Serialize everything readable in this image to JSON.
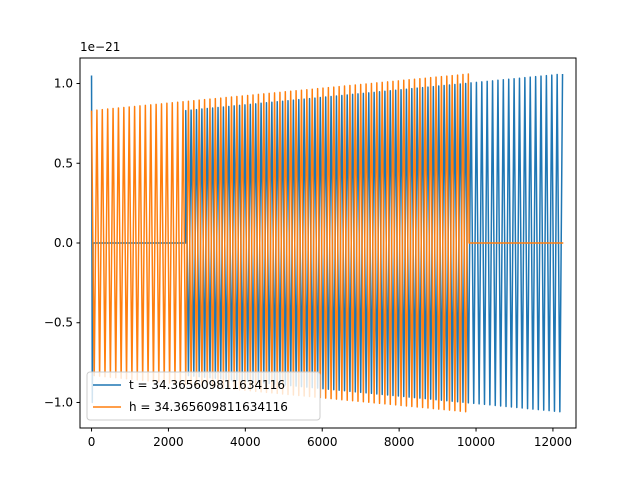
{
  "chart_data": {
    "type": "line",
    "title": "",
    "xlabel": "",
    "ylabel": "",
    "xlim": [
      -300,
      12600
    ],
    "ylim": [
      -1.16e-21,
      1.16e-21
    ],
    "y_offset_label": "1e−21",
    "x_ticks": [
      {
        "value": 0,
        "label": "0"
      },
      {
        "value": 2000,
        "label": "2000"
      },
      {
        "value": 4000,
        "label": "4000"
      },
      {
        "value": 6000,
        "label": "6000"
      },
      {
        "value": 8000,
        "label": "8000"
      },
      {
        "value": 10000,
        "label": "10000"
      },
      {
        "value": 12000,
        "label": "12000"
      }
    ],
    "y_ticks": [
      {
        "value": -1e-21,
        "label": "−1.0"
      },
      {
        "value": -5e-22,
        "label": "−0.5"
      },
      {
        "value": 0.0,
        "label": "0.0"
      },
      {
        "value": 5e-22,
        "label": "0.5"
      },
      {
        "value": 1e-21,
        "label": "1.0"
      }
    ],
    "grid": false,
    "legend_position": "lower-left",
    "series": [
      {
        "name": "t = 34.365609811634116",
        "color": "#1f77b4",
        "signal": {
          "kind": "oscillation",
          "segments": [
            {
              "x_start": 0,
              "x_end": 2450,
              "amplitude": 0,
              "flat_value": 0
            },
            {
              "x_start": 2450,
              "x_end": 12270,
              "amplitude_start": 8.3e-22,
              "amplitude_end": 1.06e-21,
              "period": 140
            }
          ],
          "spike": {
            "x": 0,
            "peak": 1.05e-21,
            "trough": -1e-21
          }
        }
      },
      {
        "name": "h = 34.365609811634116",
        "color": "#ff7f0e",
        "signal": {
          "kind": "oscillation",
          "segments": [
            {
              "x_start": 0,
              "x_end": 9820,
              "amplitude_start": 8.3e-22,
              "amplitude_end": 1.06e-21,
              "period": 140
            },
            {
              "x_start": 9820,
              "x_end": 12270,
              "amplitude": 0,
              "flat_value": 0
            }
          ]
        }
      }
    ]
  }
}
